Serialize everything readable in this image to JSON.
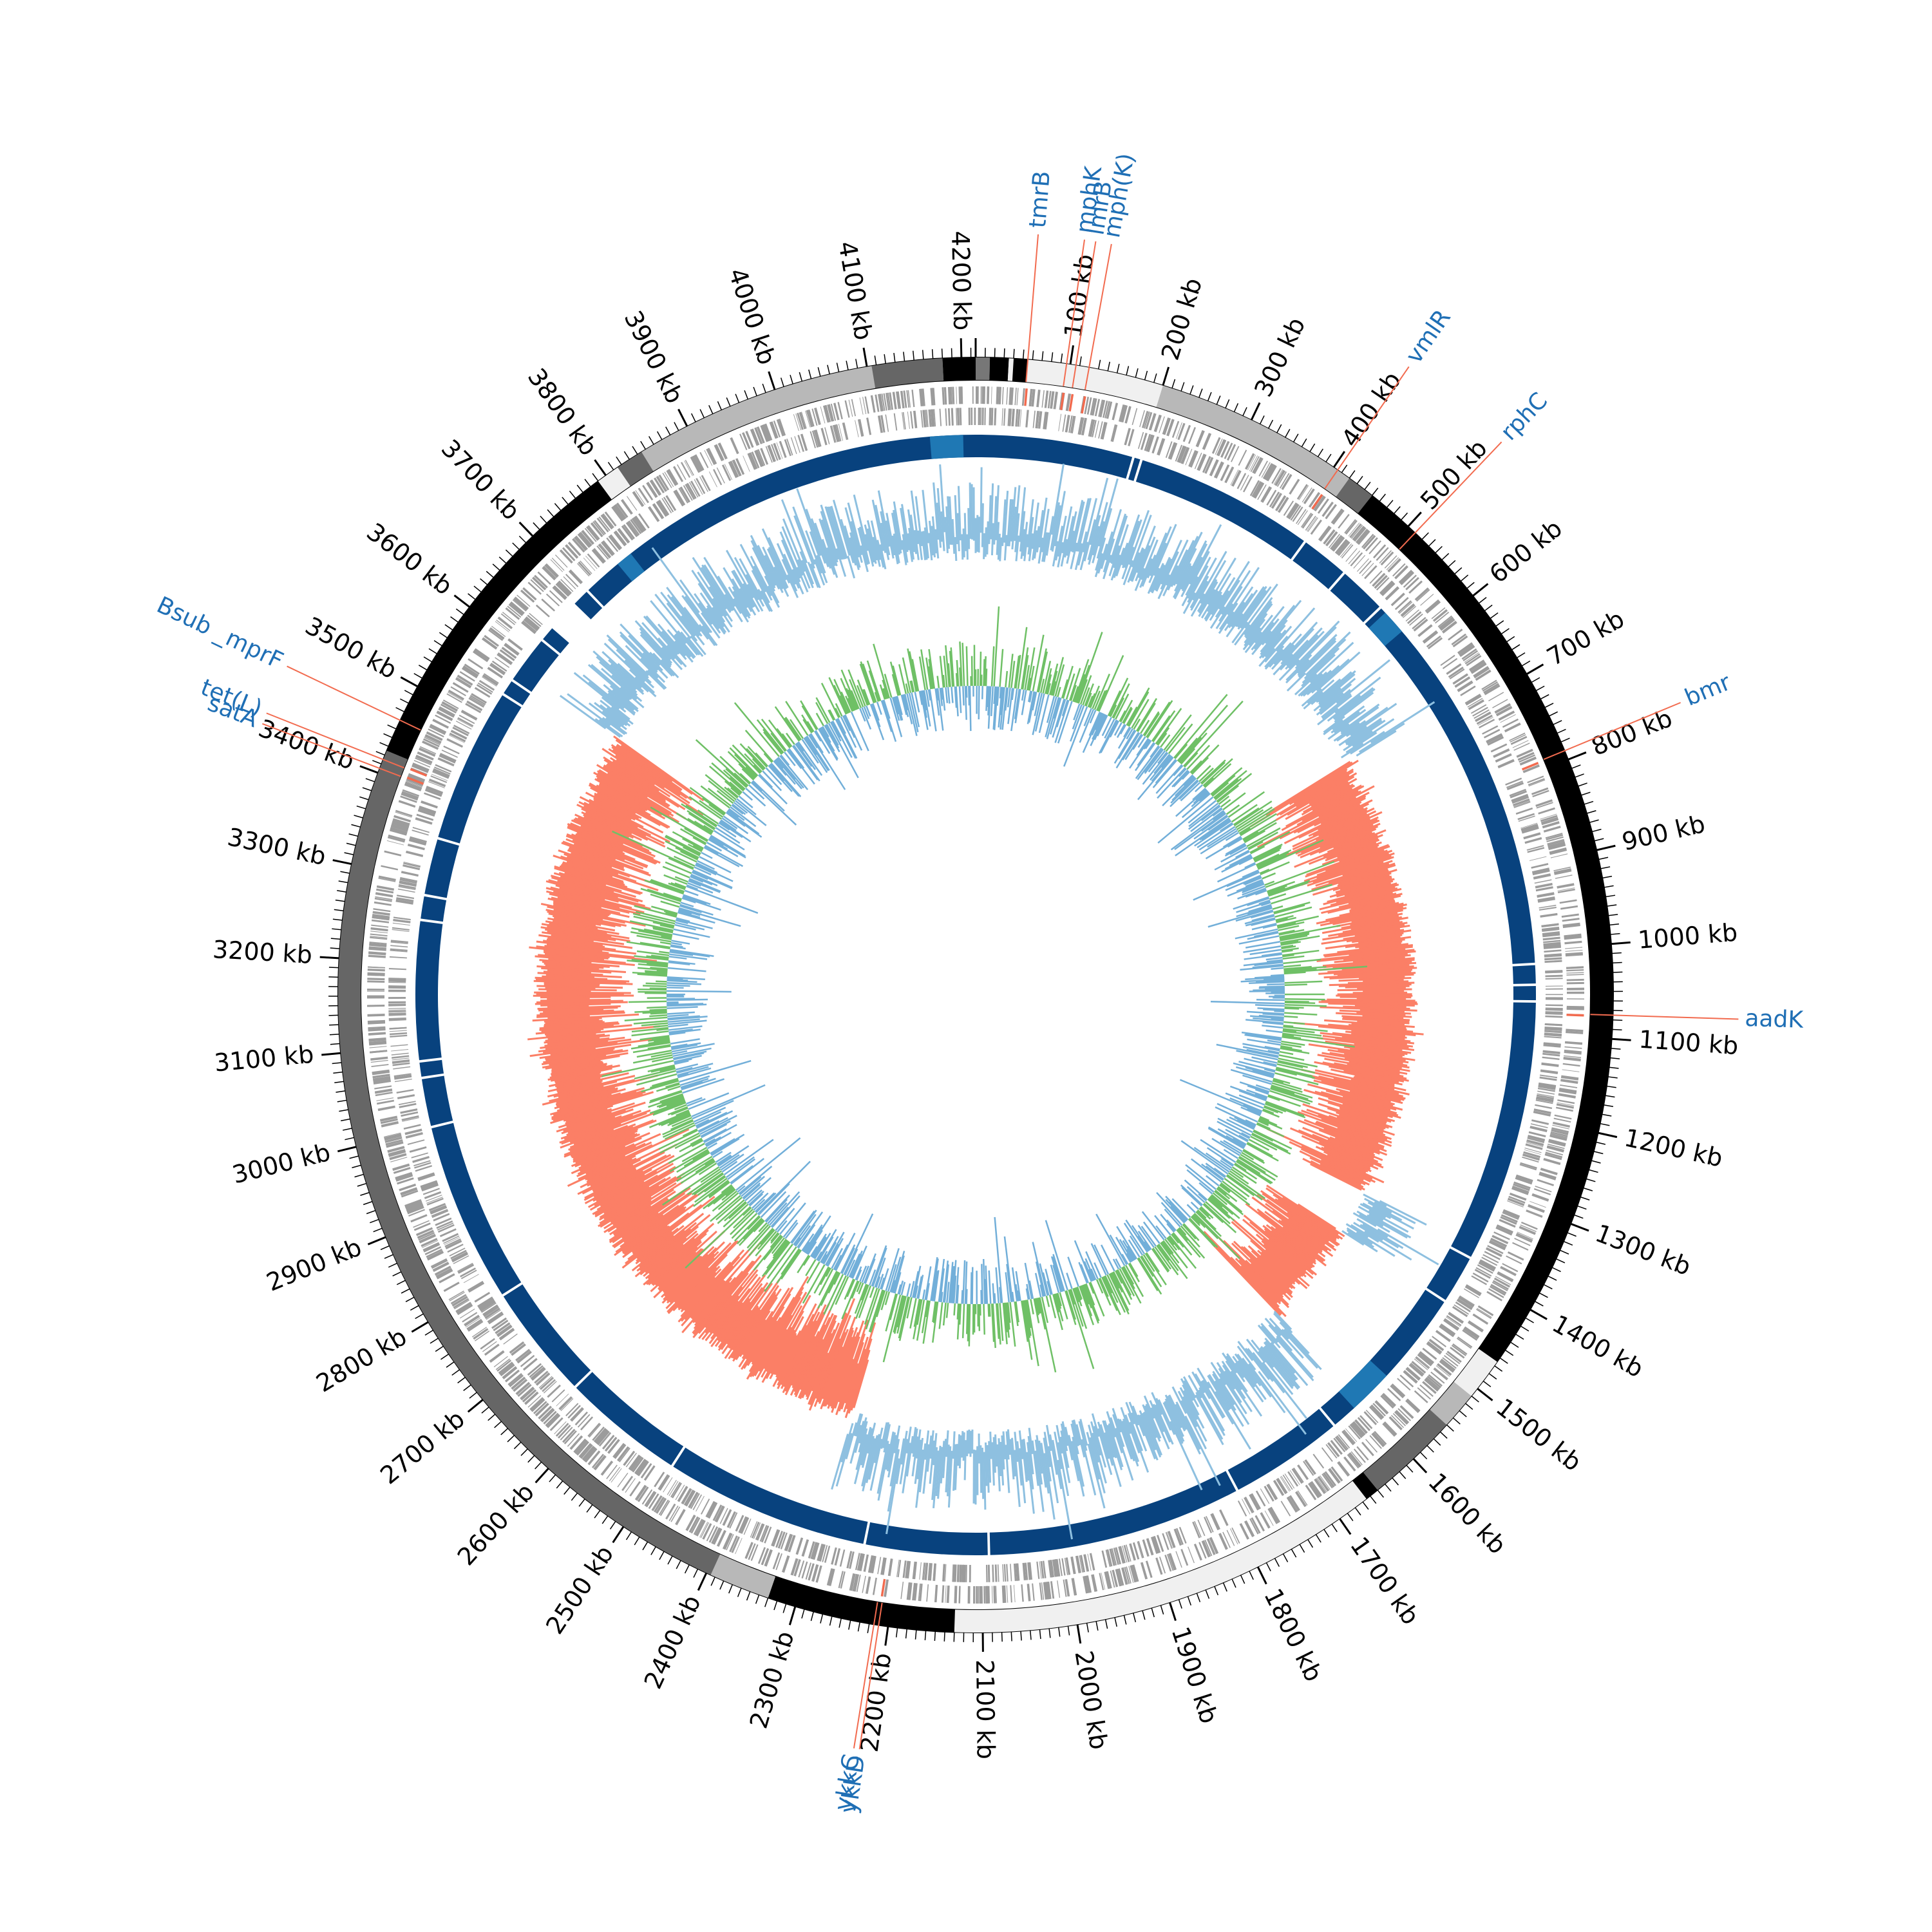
{
  "genome": {
    "length_kb": 4215,
    "tick_label_suffix": " kb",
    "tick_step_kb": 100,
    "minor_tick_step_kb": 10
  },
  "colors": {
    "cds": "#9c9c9c",
    "cds_highlight": "#f26b4f",
    "homology": "#08427e",
    "homology_light": "#1f78b4",
    "gc_positive": "#fb7f66",
    "gc_negative": "#8ec0e0",
    "skew_positive": "#6fc066",
    "skew_negative": "#72afd9",
    "label": "#1f6fb5",
    "leader": "#f26b4f",
    "ticks": "#000000"
  },
  "region_band": [
    {
      "start": 0,
      "end": 15,
      "shade": "#777777"
    },
    {
      "start": 15,
      "end": 35,
      "shade": "#000000"
    },
    {
      "start": 35,
      "end": 40,
      "shade": "#f0f0f0"
    },
    {
      "start": 40,
      "end": 55,
      "shade": "#000000"
    },
    {
      "start": 55,
      "end": 200,
      "shade": "#f0f0f0"
    },
    {
      "start": 200,
      "end": 420,
      "shade": "#b8b8b8"
    },
    {
      "start": 420,
      "end": 450,
      "shade": "#666666"
    },
    {
      "start": 450,
      "end": 1465,
      "shade": "#000000"
    },
    {
      "start": 1465,
      "end": 1510,
      "shade": "#f0f0f0"
    },
    {
      "start": 1510,
      "end": 1550,
      "shade": "#b8b8b8"
    },
    {
      "start": 1550,
      "end": 1650,
      "shade": "#666666"
    },
    {
      "start": 1650,
      "end": 1665,
      "shade": "#000000"
    },
    {
      "start": 1665,
      "end": 2130,
      "shade": "#f0f0f0"
    },
    {
      "start": 2130,
      "end": 2330,
      "shade": "#000000"
    },
    {
      "start": 2330,
      "end": 2395,
      "shade": "#b8b8b8"
    },
    {
      "start": 2395,
      "end": 3425,
      "shade": "#666666"
    },
    {
      "start": 3425,
      "end": 3790,
      "shade": "#000000"
    },
    {
      "start": 3790,
      "end": 3815,
      "shade": "#f0f0f0"
    },
    {
      "start": 3815,
      "end": 3845,
      "shade": "#666666"
    },
    {
      "start": 3845,
      "end": 4105,
      "shade": "#b8b8b8"
    },
    {
      "start": 4105,
      "end": 4180,
      "shade": "#666666"
    },
    {
      "start": 4180,
      "end": 4215,
      "shade": "#000000"
    }
  ],
  "homology_blocks": [
    {
      "start": 0,
      "end": 3640,
      "color": "#08427e"
    },
    {
      "start": 3680,
      "end": 4215,
      "color": "#08427e"
    }
  ],
  "homology_gaps": [
    190,
    200,
    420,
    480,
    540,
    1015,
    1040,
    1060,
    1380,
    1440,
    1640,
    1780,
    2090,
    2240,
    2490,
    2640,
    2780,
    3000,
    3060,
    3080,
    3250,
    3280,
    3350,
    3540,
    3560,
    3620,
    3700
  ],
  "homology_light_blocks": [
    {
      "start": 4160,
      "end": 4200
    },
    {
      "start": 3750,
      "end": 3770
    },
    {
      "start": 550,
      "end": 580
    },
    {
      "start": 1555,
      "end": 1610
    }
  ],
  "gc_reversal_ranges": [
    {
      "start": 0,
      "end": 680
    },
    {
      "start": 1370,
      "end": 1440
    },
    {
      "start": 1600,
      "end": 2300
    },
    {
      "start": 3580,
      "end": 4215
    }
  ],
  "genes": [
    {
      "label": "tmrB",
      "position_kb": 55
    },
    {
      "label": "mphK",
      "position_kb": 96
    },
    {
      "label": "lmrB",
      "position_kb": 106
    },
    {
      "label": "mph(K)",
      "position_kb": 120
    },
    {
      "label": "vmlR",
      "position_kb": 405
    },
    {
      "label": "rphC",
      "position_kb": 510
    },
    {
      "label": "bmr",
      "position_kb": 790
    },
    {
      "label": "aadK",
      "position_kb": 1075
    },
    {
      "label": "ykkD",
      "position_kb": 2210
    },
    {
      "label": "ykkC",
      "position_kb": 2215
    },
    {
      "label": "satA",
      "position_kb": 3405
    },
    {
      "label": "tet(L)",
      "position_kb": 3415
    },
    {
      "label": "Bsub _mprF",
      "position_kb": 3460
    }
  ]
}
